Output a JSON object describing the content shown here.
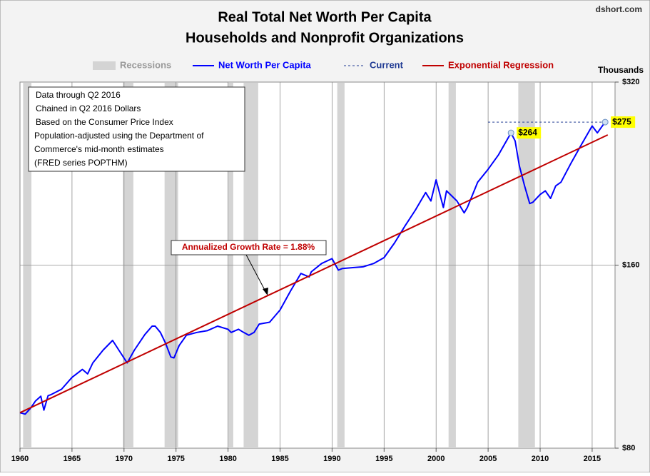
{
  "chart_data": {
    "type": "line",
    "title": "Real Total Net Worth Per Capita",
    "subtitle": "Households and Nonprofit Organizations",
    "source": "dshort.com",
    "y_axis_label": "Thousands",
    "y_scale": "log",
    "grid": true,
    "xlim": [
      1960,
      2017.2
    ],
    "xticks": [
      1960,
      1965,
      1970,
      1975,
      1980,
      1985,
      1990,
      1995,
      2000,
      2005,
      2010,
      2015
    ],
    "ylim": [
      80,
      320
    ],
    "yticks": [
      {
        "value": 80,
        "label": "$80"
      },
      {
        "value": 160,
        "label": "$160"
      },
      {
        "value": 320,
        "label": "$320"
      }
    ],
    "recessions": {
      "name": "Recessions",
      "color": "#d4d4d4",
      "spans": [
        [
          1960.3,
          1961.1
        ],
        [
          1969.9,
          1970.9
        ],
        [
          1973.9,
          1975.2
        ],
        [
          1980.0,
          1980.5
        ],
        [
          1981.5,
          1982.9
        ],
        [
          1990.5,
          1991.2
        ],
        [
          2001.2,
          2001.9
        ],
        [
          2007.9,
          2009.5
        ]
      ]
    },
    "series": [
      {
        "name": "Net Worth Per Capita",
        "color": "#0000ff",
        "x": [
          1960,
          1960.5,
          1961,
          1961.5,
          1962,
          1962.3,
          1962.7,
          1963,
          1964,
          1965,
          1966,
          1966.5,
          1967,
          1968,
          1968.9,
          1969.5,
          1970.3,
          1970.5,
          1971,
          1972,
          1972.7,
          1973,
          1973.5,
          1974,
          1974.5,
          1974.8,
          1975.3,
          1976,
          1977,
          1978,
          1979,
          1980,
          1980.3,
          1981,
          1981.5,
          1982,
          1982.5,
          1983,
          1984,
          1985,
          1986,
          1987,
          1987.8,
          1988,
          1989,
          1990,
          1990.6,
          1991,
          1992,
          1993,
          1994,
          1995,
          1996,
          1997,
          1998,
          1999,
          1999.5,
          2000,
          2000.7,
          2001,
          2002,
          2002.7,
          2003,
          2004,
          2005,
          2006,
          2007.2,
          2007.6,
          2008,
          2008.5,
          2009,
          2009.3,
          2010,
          2010.5,
          2011,
          2011.5,
          2012,
          2013,
          2014,
          2015,
          2015.5,
          2016.25
        ],
        "values": [
          91.5,
          91,
          93,
          95.7,
          97.4,
          92.4,
          97.6,
          98,
          100,
          104.6,
          107.8,
          106,
          110.5,
          116,
          120.3,
          116,
          110.5,
          112,
          116,
          123,
          127,
          127,
          124,
          119,
          113,
          112.6,
          118,
          122.7,
          124,
          124.8,
          127,
          125.5,
          124,
          125.5,
          124,
          122.7,
          124,
          128,
          128.9,
          135,
          145,
          155,
          153,
          156,
          161,
          164,
          157,
          158,
          158.5,
          159,
          161,
          164.6,
          174,
          185.5,
          197,
          210.6,
          204,
          221,
          199,
          212,
          204,
          195,
          199,
          219,
          230,
          243,
          264,
          256,
          233,
          216,
          202,
          203,
          209,
          212,
          206,
          216,
          219,
          236,
          253,
          271,
          264,
          275
        ]
      },
      {
        "name": "Current",
        "color": "#1f3a93",
        "dashed": true,
        "x": [
          2005,
          2016.25
        ],
        "values": [
          275,
          275
        ]
      },
      {
        "name": "Exponential Regression",
        "color": "#c00000",
        "x": [
          1960,
          2016.5
        ],
        "values": [
          91.5,
          262
        ]
      }
    ],
    "annotations": [
      {
        "text": "$264",
        "x": 2007.2,
        "y": 264
      },
      {
        "text": "$275",
        "x": 2016.25,
        "y": 275
      }
    ],
    "growth_note": "Annualized Growth Rate = 1.88%",
    "notes": [
      "Data through Q2 2016",
      "Chained in Q2 2016  Dollars",
      "Based on the Consumer Price Index",
      "Population-adjusted using the Department of",
      "Commerce's mid-month estimates",
      "(FRED series POPTHM)"
    ]
  }
}
